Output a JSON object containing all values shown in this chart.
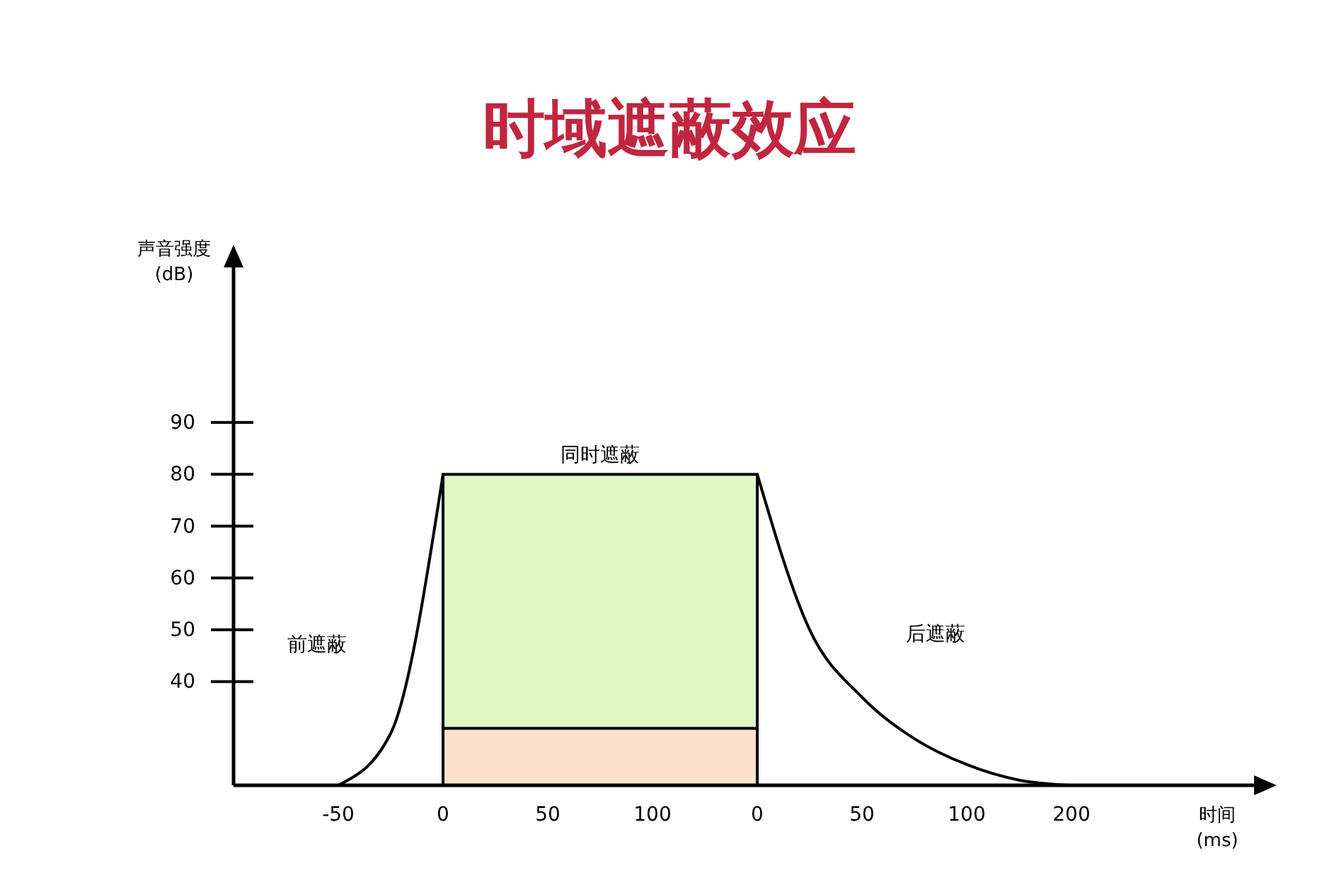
{
  "chart_data": {
    "type": "line",
    "title": "时域遮蔽效应",
    "xlabel": "时间\n(ms)",
    "ylabel": "声音强度\n(dB)",
    "categories": [
      null,
      null,
      "-50",
      null,
      "0",
      null,
      "50",
      null,
      "100",
      null,
      "0",
      null,
      "50",
      null,
      "100",
      null,
      "200",
      null,
      null,
      null
    ],
    "ylim": [
      20,
      121
    ],
    "yticks": [
      40,
      50,
      60,
      70,
      80,
      90
    ],
    "series": [
      {
        "type": "area",
        "color": "#e2f9c6",
        "values": [
          null,
          null,
          null,
          null,
          80,
          80,
          80,
          80,
          80,
          80,
          80,
          null,
          null,
          null,
          null,
          null,
          null,
          null,
          null,
          null
        ]
      },
      {
        "type": "area",
        "color": "#fde2cb",
        "values": [
          null,
          null,
          null,
          null,
          31,
          31,
          31,
          31,
          31,
          31,
          31,
          null,
          null,
          null,
          null,
          null,
          null,
          null,
          null,
          null
        ]
      },
      {
        "color": "#000000",
        "values": [
          null,
          null,
          20,
          30,
          80,
          null,
          null,
          null,
          null,
          null,
          null,
          null,
          null,
          null,
          null,
          null,
          null,
          null,
          null,
          null
        ]
      },
      {
        "color": "#000000",
        "values": [
          null,
          null,
          null,
          null,
          null,
          null,
          null,
          null,
          null,
          null,
          80,
          50,
          37,
          29,
          24,
          21,
          20,
          null,
          null,
          null
        ]
      }
    ],
    "annotations": [
      "前遮蔽",
      "同时遮蔽",
      "后遮蔽"
    ]
  }
}
